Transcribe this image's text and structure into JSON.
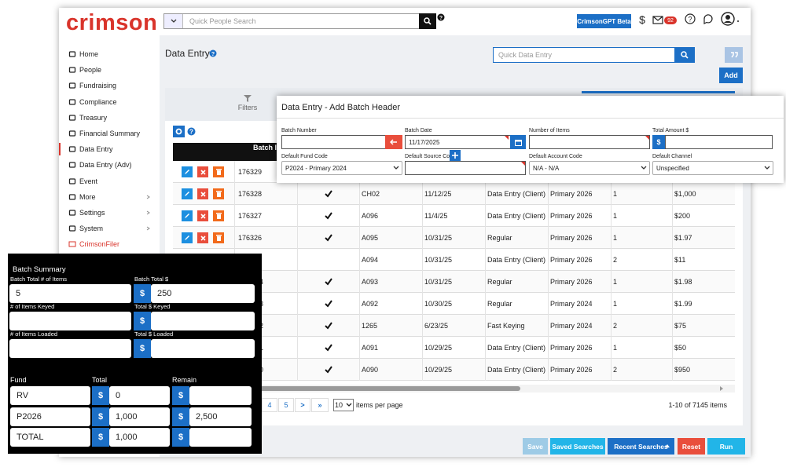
{
  "header": {
    "logo": "crimson",
    "search_placeholder": "Quick People Search",
    "gpt_button": "CrimsonGPT Beta",
    "currency_symbol": "$",
    "mail_count": "92"
  },
  "sidebar": {
    "items": [
      "Home",
      "People",
      "Fundraising",
      "Compliance",
      "Treasury",
      "Financial Summary",
      "Data Entry",
      "Data Entry (Adv)",
      "Event",
      "More",
      "Settings",
      "System",
      "CrimsonFiler"
    ]
  },
  "main": {
    "title": "Data Entry",
    "quick_entry_placeholder": "Quick Data Entry",
    "add_button": "Add",
    "filters": "Filters",
    "table": {
      "header": "Batch I",
      "rows": [
        {
          "id": "176329",
          "check": false,
          "cells": []
        },
        {
          "id": "176328",
          "check": true,
          "cells": [
            "CH02",
            "11/12/25",
            "Data Entry (Client)",
            "Primary 2026",
            "1",
            "$1,000"
          ]
        },
        {
          "id": "176327",
          "check": true,
          "cells": [
            "A096",
            "11/4/25",
            "Data Entry (Client)",
            "Primary 2026",
            "1",
            "$200"
          ]
        },
        {
          "id": "176326",
          "check": true,
          "cells": [
            "A095",
            "10/31/25",
            "Regular",
            "Primary 2026",
            "1",
            "$1.97"
          ]
        },
        {
          "check": false,
          "cells": [
            "A094",
            "10/31/25",
            "Data Entry (Client)",
            "Primary 2026",
            "2",
            "$11"
          ]
        },
        {
          "id": "4",
          "check": true,
          "cells": [
            "A093",
            "10/31/25",
            "Regular",
            "Primary 2026",
            "1",
            "$1.98"
          ]
        },
        {
          "id": "3",
          "check": true,
          "cells": [
            "A092",
            "10/30/25",
            "Regular",
            "Primary 2024",
            "1",
            "$1.99"
          ]
        },
        {
          "id": "2",
          "check": true,
          "cells": [
            "1265",
            "6/23/25",
            "Fast Keying",
            "Primary 2024",
            "2",
            "$75"
          ]
        },
        {
          "id": "1",
          "check": true,
          "cells": [
            "A091",
            "10/29/25",
            "Data Entry (Client)",
            "Primary 2026",
            "1",
            "$50"
          ]
        },
        {
          "id": "0",
          "check": true,
          "cells": [
            "A090",
            "10/29/25",
            "Data Entry (Client)",
            "Primary 2026",
            "2",
            "$950"
          ]
        }
      ]
    },
    "pagination": {
      "pages": [
        "4",
        "5"
      ],
      "next": ">",
      "last": "»",
      "page_size": "10",
      "page_size_label": "items per page",
      "summary": "1-10 of 7145 items"
    },
    "buttons": [
      "Save",
      "Saved Searches",
      "Recent Searches",
      "Reset",
      "Run"
    ]
  },
  "modal": {
    "title": "Data Entry - Add Batch Header",
    "fields": [
      {
        "label": "Batch Number"
      },
      {
        "label": "Batch Date",
        "value": "11/17/2025"
      },
      {
        "label": "Number of Items"
      },
      {
        "label": "Total Amount $"
      },
      {
        "label": "Default Fund Code",
        "value": "P2024 - Primary 2024"
      },
      {
        "label": "Default Source Code"
      },
      {
        "label": "Default Account Code",
        "value": "N/A - N/A"
      },
      {
        "label": "Default Channel",
        "value": "Unspecified"
      }
    ]
  },
  "batch_summary": {
    "title": "Batch Summary",
    "fields": [
      {
        "label": "Batch Total # of Items",
        "value": "5"
      },
      {
        "label": "Batch Total $",
        "value": "250"
      },
      {
        "label": "# of Items Keyed"
      },
      {
        "label": "Total $ Keyed"
      },
      {
        "label": "# of Items Loaded"
      },
      {
        "label": "Total $ Loaded"
      }
    ],
    "columns": [
      "Fund",
      "Total",
      "Remain"
    ],
    "rows": [
      {
        "fund": "RV",
        "total": "0"
      },
      {
        "fund": "P2026",
        "total": "1,000",
        "remain": "2,500"
      },
      {
        "fund": "TOTAL",
        "total": "1,000"
      }
    ]
  }
}
